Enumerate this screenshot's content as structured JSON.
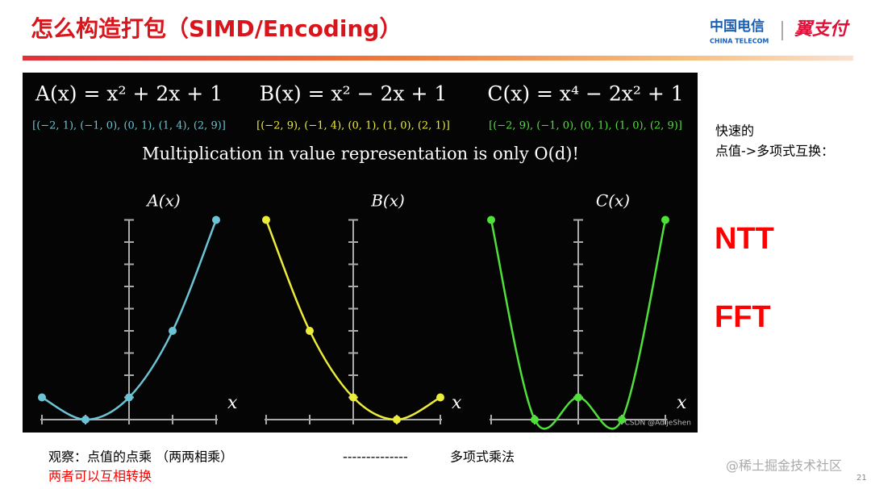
{
  "header": {
    "title": "怎么构造打包（SIMD/Encoding）",
    "logo_cn": "中国电信",
    "logo_en": "CHINA TELECOM",
    "logo_brand": "翼支付"
  },
  "figure": {
    "caption": "Multiplication in value representation is only O(d)!",
    "axis_label": "x",
    "watermark": "CSDN @AdijeShen",
    "panels": [
      {
        "formula": "A(x) = x² + 2x + 1",
        "points_label": "[(−2, 1), (−1, 0), (0, 1), (1, 4), (2, 9)]",
        "label": "A(x)",
        "color": "#6cc3d3",
        "points": [
          [
            -2,
            1
          ],
          [
            -1,
            0
          ],
          [
            0,
            1
          ],
          [
            1,
            4
          ],
          [
            2,
            9
          ]
        ]
      },
      {
        "formula": "B(x) = x² − 2x + 1",
        "points_label": "[(−2, 9), (−1, 4), (0, 1), (1, 0), (2, 1)]",
        "label": "B(x)",
        "color": "#ecec3a",
        "points": [
          [
            -2,
            9
          ],
          [
            -1,
            4
          ],
          [
            0,
            1
          ],
          [
            1,
            0
          ],
          [
            2,
            1
          ]
        ]
      },
      {
        "formula": "C(x) = x⁴ − 2x² + 1",
        "points_label": "[(−2, 9), (−1, 0), (0, 1), (1, 0), (2, 9)]",
        "label": "C(x)",
        "color": "#4fe03a",
        "points": [
          [
            -2,
            9
          ],
          [
            -1,
            0
          ],
          [
            0,
            1
          ],
          [
            1,
            0
          ],
          [
            2,
            9
          ]
        ]
      }
    ]
  },
  "side": {
    "line1": "快速的",
    "line2": "点值->多项式互换：",
    "ntt": "NTT",
    "fft": "FFT"
  },
  "footer": {
    "observe": "观察：点值的点乘 （两两相乘）",
    "dashes": "--------------",
    "poly": "多项式乘法",
    "convert": "两者可以互相转换",
    "watermark": "@稀土掘金技术社区",
    "page": "21"
  }
}
